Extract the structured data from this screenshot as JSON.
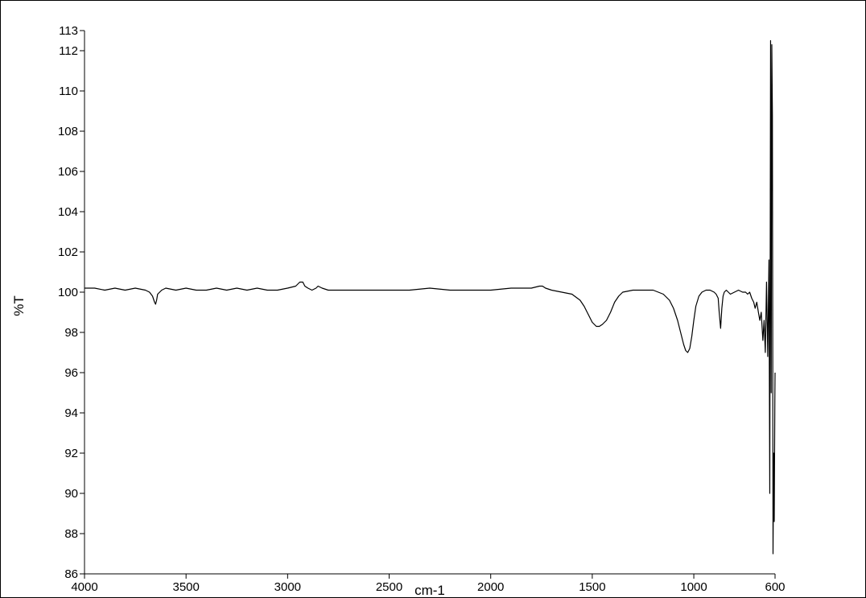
{
  "chart_data": {
    "type": "line",
    "title": "",
    "xlabel": "cm-1",
    "ylabel": "%T",
    "xlim": [
      4000,
      600
    ],
    "ylim": [
      86,
      113
    ],
    "x_reversed": true,
    "grid": false,
    "legend": "none",
    "x_ticks": [
      4000,
      3500,
      3000,
      2500,
      2000,
      1500,
      1000,
      600
    ],
    "y_ticks": [
      86,
      88,
      90,
      92,
      94,
      96,
      98,
      100,
      102,
      104,
      106,
      108,
      110,
      112,
      113
    ],
    "series": [
      {
        "name": "",
        "color": "#000000",
        "x": [
          4000,
          3950,
          3900,
          3850,
          3800,
          3750,
          3700,
          3680,
          3665,
          3655,
          3650,
          3645,
          3640,
          3620,
          3600,
          3550,
          3500,
          3450,
          3400,
          3350,
          3300,
          3250,
          3200,
          3150,
          3100,
          3050,
          3000,
          2960,
          2940,
          2925,
          2915,
          2900,
          2880,
          2860,
          2850,
          2830,
          2800,
          2700,
          2600,
          2500,
          2400,
          2300,
          2200,
          2100,
          2000,
          1900,
          1800,
          1760,
          1745,
          1730,
          1700,
          1650,
          1600,
          1560,
          1540,
          1520,
          1500,
          1480,
          1465,
          1450,
          1430,
          1410,
          1390,
          1370,
          1350,
          1300,
          1250,
          1200,
          1150,
          1120,
          1100,
          1080,
          1065,
          1050,
          1040,
          1030,
          1020,
          1010,
          1000,
          990,
          975,
          960,
          940,
          920,
          900,
          890,
          880,
          875,
          868,
          862,
          856,
          850,
          840,
          820,
          800,
          780,
          760,
          745,
          735,
          725,
          715,
          705,
          698,
          690,
          682,
          675,
          668,
          660,
          654,
          648,
          642,
          636,
          630,
          626,
          622,
          619,
          616,
          613,
          610,
          607,
          604,
          601,
          600
        ],
        "y": [
          100.2,
          100.2,
          100.1,
          100.2,
          100.1,
          100.2,
          100.1,
          100.0,
          99.8,
          99.5,
          99.4,
          99.6,
          99.9,
          100.1,
          100.2,
          100.1,
          100.2,
          100.1,
          100.1,
          100.2,
          100.1,
          100.2,
          100.1,
          100.2,
          100.1,
          100.1,
          100.2,
          100.3,
          100.5,
          100.5,
          100.3,
          100.2,
          100.1,
          100.2,
          100.3,
          100.2,
          100.1,
          100.1,
          100.1,
          100.1,
          100.1,
          100.2,
          100.1,
          100.1,
          100.1,
          100.2,
          100.2,
          100.3,
          100.3,
          100.2,
          100.1,
          100.0,
          99.9,
          99.6,
          99.3,
          98.9,
          98.5,
          98.3,
          98.3,
          98.4,
          98.6,
          99.0,
          99.5,
          99.8,
          100.0,
          100.1,
          100.1,
          100.1,
          99.9,
          99.6,
          99.2,
          98.6,
          98.0,
          97.4,
          97.1,
          97.0,
          97.2,
          97.8,
          98.6,
          99.3,
          99.8,
          100.0,
          100.1,
          100.1,
          100.0,
          99.9,
          99.7,
          99.0,
          98.2,
          99.2,
          99.8,
          100.0,
          100.1,
          99.9,
          100.0,
          100.1,
          100.0,
          100.0,
          99.9,
          100.0,
          99.7,
          99.5,
          99.2,
          99.5,
          99.0,
          98.6,
          99.0,
          97.6,
          98.6,
          97.0,
          100.5,
          96.8,
          101.6,
          90.0,
          112.5,
          95.0,
          112.3,
          108.8,
          87.0,
          92.0,
          88.6,
          94.7,
          96.0
        ]
      }
    ]
  }
}
